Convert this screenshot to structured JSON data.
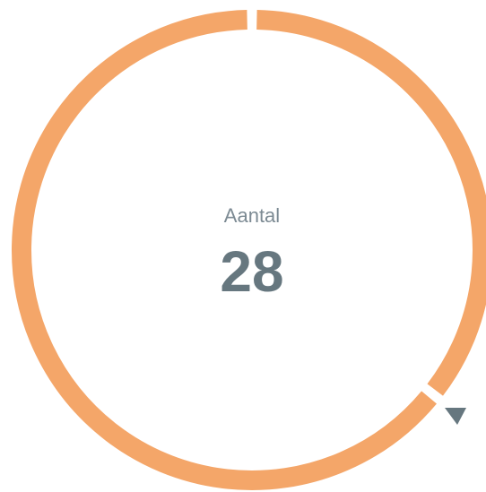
{
  "chart_data": {
    "type": "donut",
    "label": "Aantal",
    "total": 28,
    "values": [
      10,
      18
    ],
    "colors": [
      "#f4a669",
      "#f4a669"
    ]
  }
}
